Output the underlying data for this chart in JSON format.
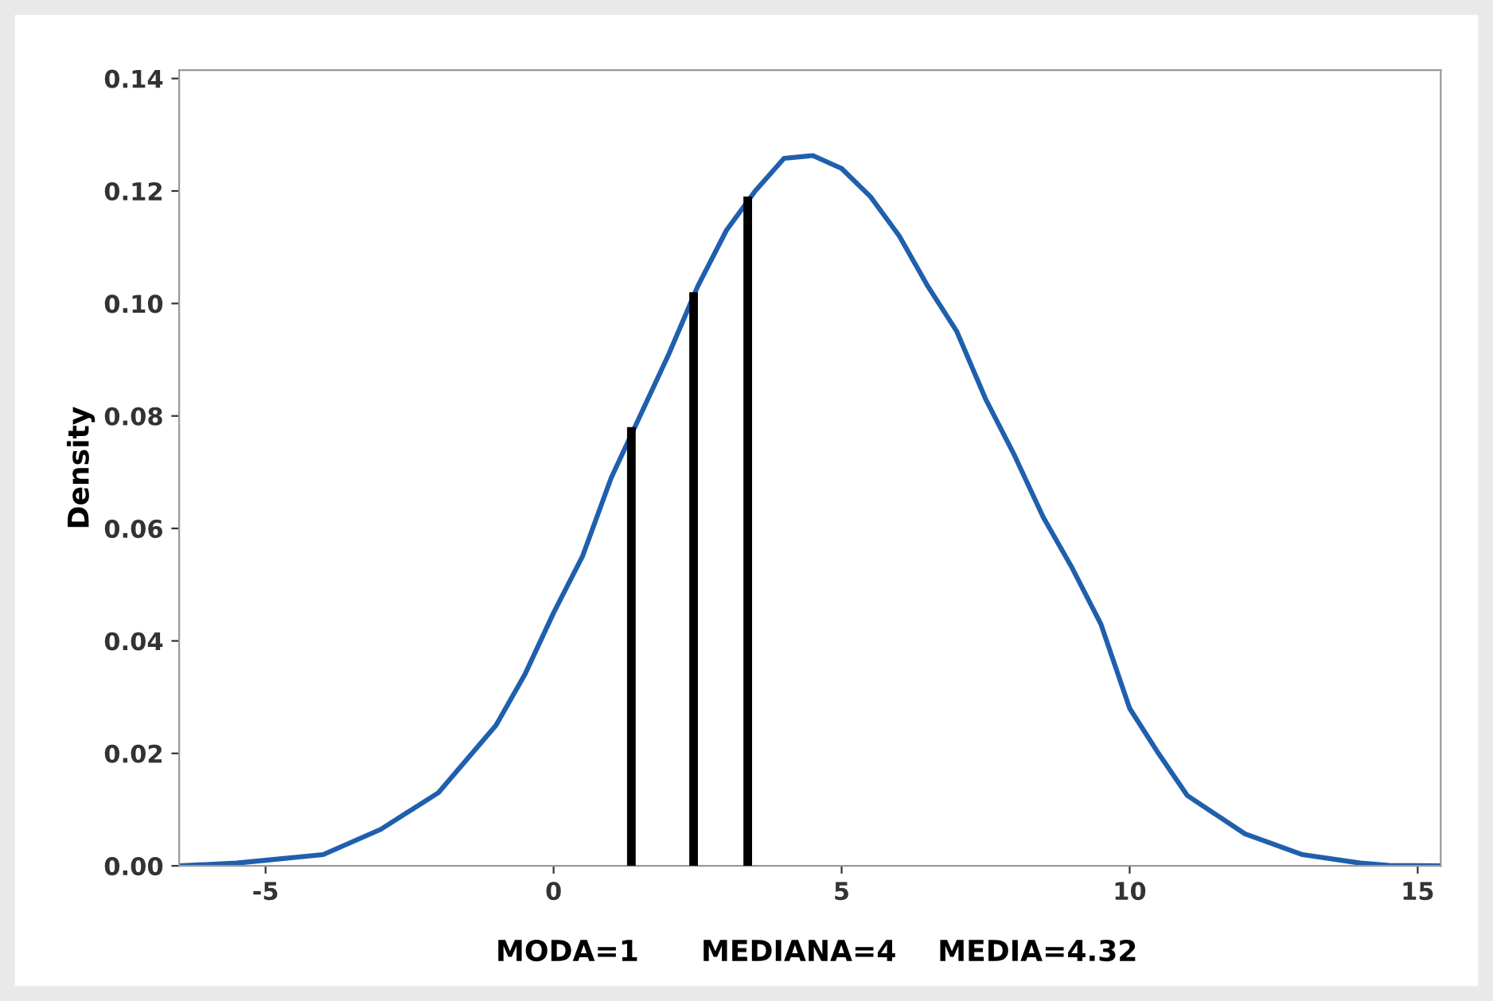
{
  "chart_data": {
    "type": "line",
    "ylabel": "Density",
    "xlim": [
      -6.5,
      15.4
    ],
    "ylim": [
      0,
      0.1415
    ],
    "xticks": [
      -5,
      0,
      5,
      10,
      15
    ],
    "yticks": [
      {
        "value": 0,
        "label": "0.00"
      },
      {
        "value": 0.02,
        "label": "0.02"
      },
      {
        "value": 0.04,
        "label": "0.04"
      },
      {
        "value": 0.06,
        "label": "0.06"
      },
      {
        "value": 0.08,
        "label": "0.08"
      },
      {
        "value": 0.1,
        "label": "0.10"
      },
      {
        "value": 0.12,
        "label": "0.12"
      },
      {
        "value": 0.14,
        "label": "0.14"
      }
    ],
    "grid": false,
    "legend": false,
    "marker": "none",
    "line_style": "solid",
    "series": [
      {
        "color": "#1f5fad",
        "x": [
          -6.5,
          -5.5,
          -5,
          -4,
          -3,
          -2,
          -1,
          -0.5,
          0,
          0.5,
          1,
          1.5,
          2,
          2.5,
          3,
          3.5,
          4,
          4.5,
          5,
          5.5,
          6,
          6.5,
          7,
          7.5,
          8,
          8.5,
          9,
          9.5,
          10,
          10.5,
          11,
          12,
          13,
          14,
          14.5,
          15.4
        ],
        "values": [
          0,
          0.0005,
          0.001,
          0.002,
          0.0065,
          0.013,
          0.025,
          0.034,
          0.045,
          0.055,
          0.069,
          0.08,
          0.091,
          0.103,
          0.113,
          0.12,
          0.1258,
          0.1263,
          0.124,
          0.119,
          0.112,
          0.103,
          0.095,
          0.083,
          0.073,
          0.062,
          0.053,
          0.043,
          0.028,
          0.02,
          0.0125,
          0.0057,
          0.002,
          0.0005,
          0.0001,
          0
        ]
      },
      {
        "type": "bar",
        "color": "#000000",
        "x": [
          1.35,
          2.43,
          3.37
        ],
        "values": [
          0.078,
          0.102,
          0.119
        ]
      }
    ],
    "annotations": [
      "MODA=1",
      "MEDIANA=4",
      "MEDIA=4.32"
    ]
  }
}
